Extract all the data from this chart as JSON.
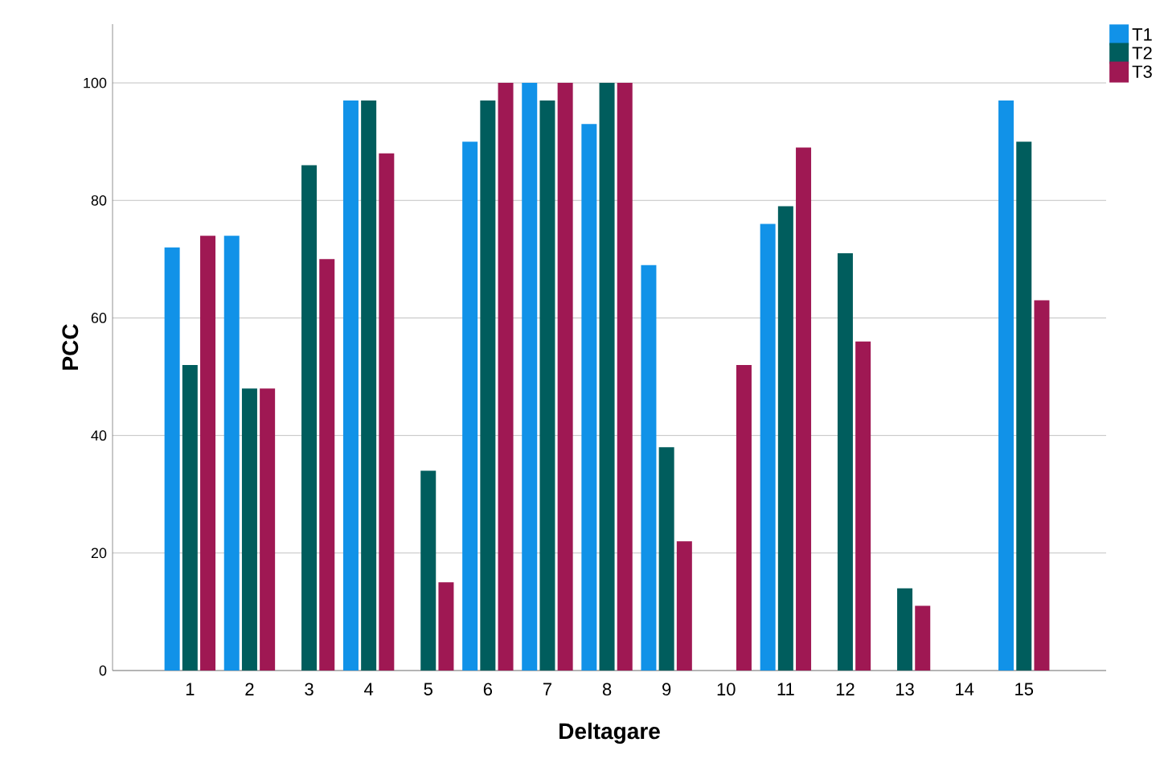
{
  "chart_data": {
    "type": "bar",
    "xlabel": "Deltagare",
    "ylabel": "PCC",
    "categories": [
      "1",
      "2",
      "3",
      "4",
      "5",
      "6",
      "7",
      "8",
      "9",
      "10",
      "11",
      "12",
      "13",
      "14",
      "15"
    ],
    "series": [
      {
        "name": "T1",
        "color": "#1192e8",
        "values": [
          72,
          74,
          null,
          97,
          null,
          90,
          100,
          93,
          69,
          null,
          76,
          null,
          null,
          null,
          97
        ]
      },
      {
        "name": "T2",
        "color": "#005d5d",
        "values": [
          52,
          48,
          86,
          97,
          34,
          97,
          97,
          100,
          38,
          null,
          79,
          71,
          14,
          null,
          90
        ]
      },
      {
        "name": "T3",
        "color": "#9f1853",
        "values": [
          74,
          48,
          70,
          88,
          15,
          100,
          100,
          100,
          22,
          52,
          89,
          56,
          11,
          null,
          63
        ]
      }
    ],
    "ylim": [
      0,
      110
    ],
    "yticks": [
      0,
      20,
      40,
      60,
      80,
      100
    ],
    "grid": "y",
    "legend": "top right"
  }
}
